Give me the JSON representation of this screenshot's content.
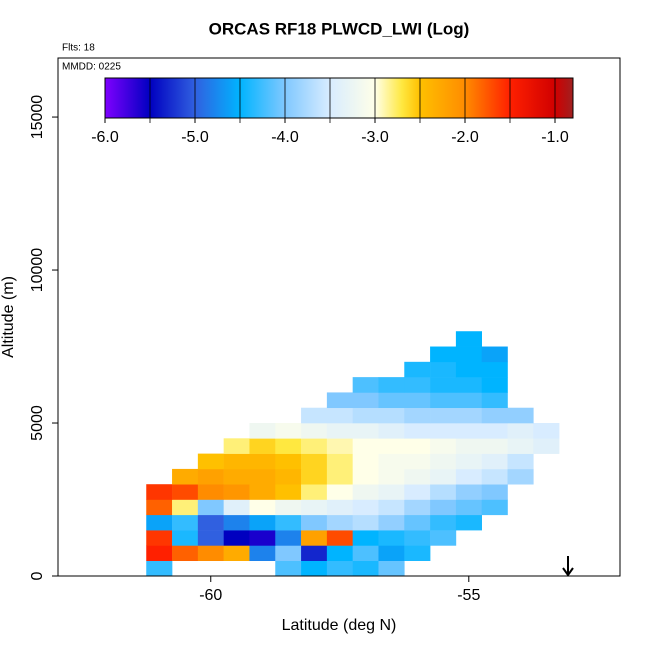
{
  "chart_data": {
    "type": "heatmap",
    "title": "ORCAS RF18 PLWCD_LWI (Log)",
    "flights_label": "Flts: 18",
    "date_label": "MMDD: 0225",
    "xlabel": "Latitude (deg N)",
    "ylabel": "Altitude (m)",
    "xlim": [
      -62.96,
      -52.07
    ],
    "xticks": [
      -60,
      -55
    ],
    "ylim": [
      0,
      16930
    ],
    "yticks": [
      0,
      5000,
      10000,
      15000
    ],
    "clim": [
      -6,
      -0.8
    ],
    "cticks": [
      {
        "value": -6,
        "label": "-6.0"
      },
      {
        "value": -5,
        "label": "-5.0"
      },
      {
        "value": -4,
        "label": "-4.0"
      },
      {
        "value": -3,
        "label": "-3.0"
      },
      {
        "value": -2,
        "label": "-2.0"
      },
      {
        "value": -1,
        "label": "-1.0"
      }
    ],
    "colorscale": [
      [
        -6,
        "#7f00ff"
      ],
      [
        -5.5,
        "#0000c0"
      ],
      [
        -5,
        "#3060e0"
      ],
      [
        -4.5,
        "#00b4ff"
      ],
      [
        -4,
        "#80c8ff"
      ],
      [
        -3.5,
        "#d8ecff"
      ],
      [
        -3,
        "#ffffe8"
      ],
      [
        -2.7,
        "#ffe840"
      ],
      [
        -2.5,
        "#ffc000"
      ],
      [
        -2,
        "#ff8c00"
      ],
      [
        -1.5,
        "#ff2000"
      ],
      [
        -1,
        "#d00000"
      ],
      [
        -0.8,
        "#a02020"
      ]
    ],
    "rows": [
      {
        "alt": 250,
        "lat": [
          -61,
          -58.5,
          -58,
          -57.5,
          -57,
          -56.5
        ],
        "values": [
          -4.3,
          -4.2,
          -4.5,
          -4.3,
          -4.4,
          -4.1
        ]
      },
      {
        "alt": 750,
        "lat": [
          -61,
          -60.5,
          -60,
          -59.5,
          -59,
          -58.5,
          -58,
          -57.5,
          -57,
          -56.5,
          -56
        ],
        "values": [
          -1.5,
          -1.8,
          -2.0,
          -2.3,
          -4.8,
          -4.0,
          -5.3,
          -4.5,
          -4.2,
          -4.6,
          -4.4
        ]
      },
      {
        "alt": 1250,
        "lat": [
          -61,
          -60.5,
          -60,
          -59.5,
          -59,
          -58.5,
          -58,
          -57.5,
          -57,
          -56.5,
          -56,
          -55.5
        ],
        "values": [
          -1.6,
          -4.4,
          -5.0,
          -5.5,
          -5.6,
          -4.8,
          -2.2,
          -1.7,
          -4.5,
          -4.4,
          -4.3,
          -4.2
        ]
      },
      {
        "alt": 1750,
        "lat": [
          -61,
          -60.5,
          -60,
          -59.5,
          -59,
          -58.5,
          -58,
          -57.5,
          -57,
          -56.5,
          -56,
          -55.5,
          -55
        ],
        "values": [
          -4.6,
          -4.3,
          -5.0,
          -4.8,
          -4.6,
          -4.3,
          -4.0,
          -3.8,
          -3.7,
          -3.9,
          -4.1,
          -4.3,
          -4.4
        ]
      },
      {
        "alt": 2250,
        "lat": [
          -61,
          -60.5,
          -60,
          -59.5,
          -59,
          -58.5,
          -58,
          -57.5,
          -57,
          -56.5,
          -56,
          -55.5,
          -55,
          -54.5
        ],
        "values": [
          -1.8,
          -2.8,
          -4.0,
          -3.4,
          -3.0,
          -3.2,
          -3.3,
          -3.4,
          -3.5,
          -3.6,
          -3.8,
          -4.0,
          -4.1,
          -4.2
        ]
      },
      {
        "alt": 2750,
        "lat": [
          -61,
          -60.5,
          -60,
          -59.5,
          -59,
          -58.5,
          -58,
          -57.5,
          -57,
          -56.5,
          -56,
          -55.5,
          -55,
          -54.5
        ],
        "values": [
          -1.6,
          -1.7,
          -2.0,
          -2.1,
          -2.3,
          -2.5,
          -2.8,
          -3.0,
          -3.2,
          -3.3,
          -3.5,
          -3.7,
          -3.9,
          -4.0
        ]
      },
      {
        "alt": 3250,
        "lat": [
          -60.5,
          -60,
          -59.5,
          -59,
          -58.5,
          -58,
          -57.5,
          -57,
          -56.5,
          -56,
          -55.5,
          -55,
          -54.5,
          -54
        ],
        "values": [
          -2.3,
          -2.2,
          -2.3,
          -2.3,
          -2.4,
          -2.6,
          -2.8,
          -3.0,
          -3.1,
          -3.2,
          -3.3,
          -3.5,
          -3.6,
          -3.8
        ]
      },
      {
        "alt": 3750,
        "lat": [
          -60,
          -59.5,
          -59,
          -58.5,
          -58,
          -57.5,
          -57,
          -56.5,
          -56,
          -55.5,
          -55,
          -54.5,
          -54
        ],
        "values": [
          -2.5,
          -2.4,
          -2.4,
          -2.5,
          -2.6,
          -2.8,
          -3.0,
          -3.1,
          -3.1,
          -3.2,
          -3.3,
          -3.4,
          -3.6
        ]
      },
      {
        "alt": 4250,
        "lat": [
          -59.5,
          -59,
          -58.5,
          -58,
          -57.5,
          -57,
          -56.5,
          -56,
          -55.5,
          -55,
          -54.5,
          -54,
          -53.5
        ],
        "values": [
          -2.8,
          -2.6,
          -2.7,
          -2.8,
          -2.9,
          -3.0,
          -3.0,
          -3.0,
          -3.1,
          -3.2,
          -3.2,
          -3.3,
          -3.4
        ]
      },
      {
        "alt": 4750,
        "lat": [
          -59,
          -58.5,
          -58,
          -57.5,
          -57,
          -56.5,
          -56,
          -55.5,
          -55,
          -54.5,
          -54,
          -53.5
        ],
        "values": [
          -3.2,
          -3.1,
          -3.2,
          -3.3,
          -3.3,
          -3.4,
          -3.5,
          -3.5,
          -3.5,
          -3.5,
          -3.4,
          -3.5
        ]
      },
      {
        "alt": 5250,
        "lat": [
          -58,
          -57.5,
          -57,
          -56.5,
          -56,
          -55.5,
          -55,
          -54.5,
          -54
        ],
        "values": [
          -3.6,
          -3.6,
          -3.7,
          -3.7,
          -3.8,
          -3.8,
          -3.8,
          -3.9,
          -3.9
        ]
      },
      {
        "alt": 5750,
        "lat": [
          -57.5,
          -57,
          -56.5,
          -56,
          -55.5,
          -55,
          -54.5
        ],
        "values": [
          -4.0,
          -4.0,
          -4.1,
          -4.1,
          -4.2,
          -4.2,
          -4.3
        ]
      },
      {
        "alt": 6250,
        "lat": [
          -57,
          -56.5,
          -56,
          -55.5,
          -55,
          -54.5
        ],
        "values": [
          -4.2,
          -4.3,
          -4.3,
          -4.4,
          -4.4,
          -4.5
        ]
      },
      {
        "alt": 6750,
        "lat": [
          -56,
          -55.5,
          -55,
          -54.5
        ],
        "values": [
          -4.4,
          -4.4,
          -4.5,
          -4.5
        ]
      },
      {
        "alt": 7250,
        "lat": [
          -55.5,
          -55,
          -54.5
        ],
        "values": [
          -4.5,
          -4.5,
          -4.6
        ]
      },
      {
        "alt": 7750,
        "lat": [
          -55
        ],
        "values": [
          -4.5
        ]
      }
    ]
  }
}
